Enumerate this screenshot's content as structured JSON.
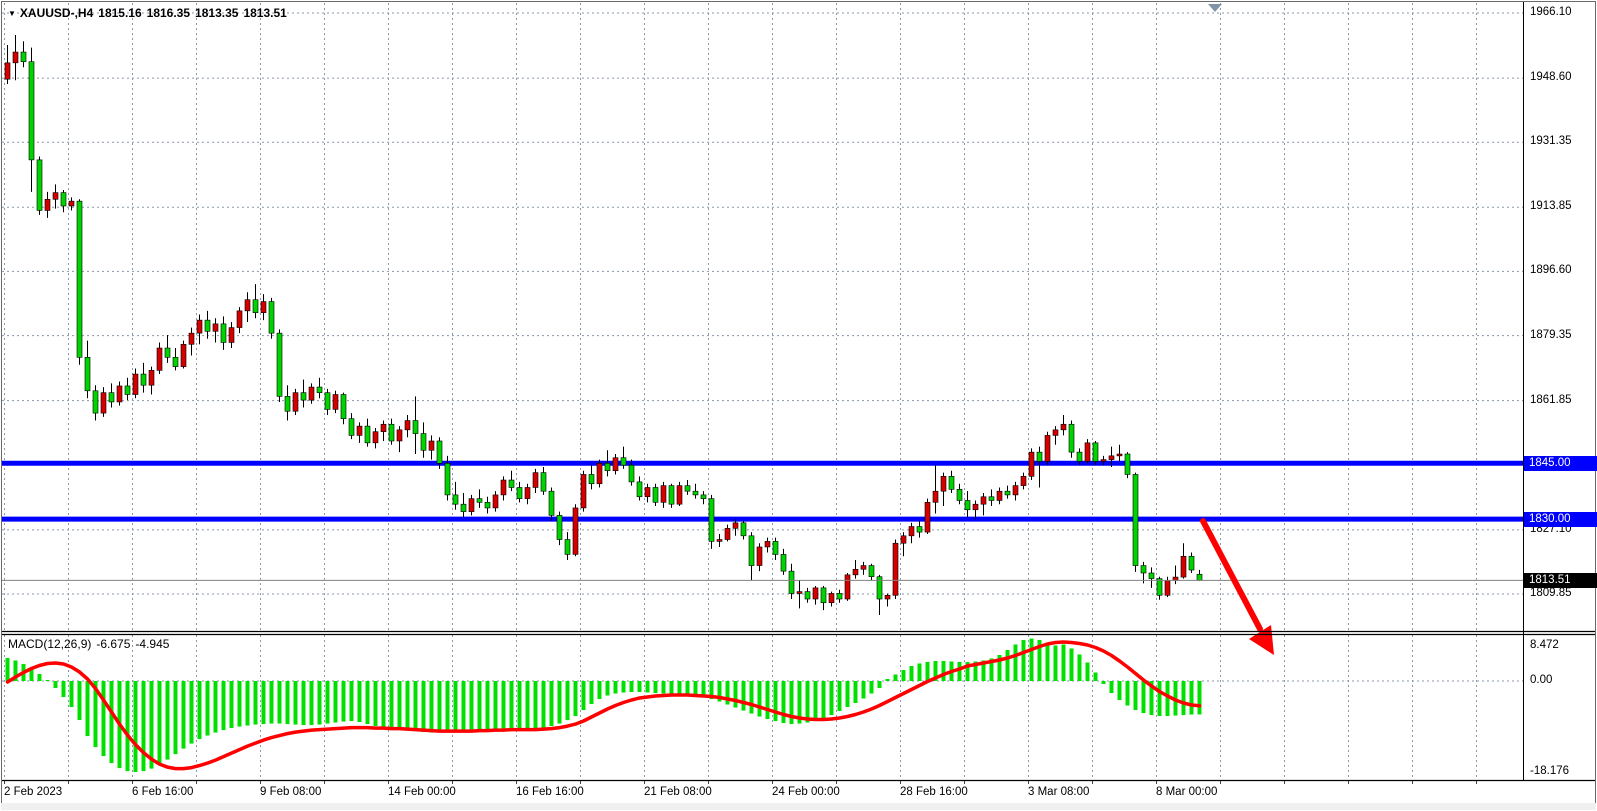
{
  "window": {
    "title": {
      "symbol_period": "XAUUSD-,H4",
      "open": "1815.16",
      "high": "1816.35",
      "low": "1813.35",
      "close": "1813.51"
    }
  },
  "colors": {
    "bull_body": "#d40000",
    "bear_body": "#00d400",
    "wick": "#000000",
    "macd_bar": "#00e000",
    "macd_signal": "#ff0000",
    "hline_blue": "#0000ff",
    "grid": "#8a97a8",
    "current_price_line": "#808080",
    "badge_blue_bg": "#0000ff",
    "badge_black_bg": "#000000",
    "arrow": "#ff0000",
    "shift_marker": "#8193a7"
  },
  "chart_data": {
    "type": "candlestick",
    "symbol": "XAUUSD",
    "timeframe": "H4",
    "x_labels": [
      "2 Feb 2023",
      "6 Feb 16:00",
      "9 Feb 08:00",
      "14 Feb 00:00",
      "16 Feb 16:00",
      "21 Feb 08:00",
      "24 Feb 00:00",
      "28 Feb 16:00",
      "3 Mar 08:00",
      "8 Mar 00:00"
    ],
    "candles_per_x_label": 16,
    "price_axis_labels": [
      {
        "label": "1966.10",
        "value": 1966.1
      },
      {
        "label": "1948.60",
        "value": 1948.6
      },
      {
        "label": "1931.35",
        "value": 1931.35
      },
      {
        "label": "1913.85",
        "value": 1913.85
      },
      {
        "label": "1896.60",
        "value": 1896.6
      },
      {
        "label": "1879.35",
        "value": 1879.35
      },
      {
        "label": "1861.85",
        "value": 1861.85
      },
      {
        "label": "1827.10",
        "value": 1827.1
      },
      {
        "label": "1809.85",
        "value": 1809.85
      }
    ],
    "price_axis_range": {
      "top": 1966.1,
      "bottom": 1809.85
    },
    "hlines": [
      {
        "price": 1845.0,
        "label": "1845.00"
      },
      {
        "price": 1830.0,
        "label": "1830.00"
      }
    ],
    "current_price": {
      "value": 1813.51,
      "label": "1813.51"
    },
    "annotations": {
      "red_down_arrow": {
        "from_price": 1830.0,
        "near_x_label": "8 Mar 00:00",
        "direction": "down-right"
      }
    },
    "candles": [
      [
        1948.3,
        1957.5,
        1947.0,
        1952.7
      ],
      [
        1952.7,
        1960.2,
        1948.0,
        1955.6
      ],
      [
        1955.6,
        1958.5,
        1951.5,
        1953.0
      ],
      [
        1953.0,
        1956.8,
        1918.0,
        1926.6
      ],
      [
        1926.6,
        1927.5,
        1911.8,
        1913.0
      ],
      [
        1913.0,
        1918.0,
        1911.0,
        1916.0
      ],
      [
        1916.0,
        1920.0,
        1913.5,
        1917.8
      ],
      [
        1917.8,
        1918.5,
        1912.5,
        1914.2
      ],
      [
        1914.2,
        1916.5,
        1913.0,
        1915.5
      ],
      [
        1915.5,
        1916.0,
        1871.5,
        1873.5
      ],
      [
        1873.5,
        1878.0,
        1862.5,
        1864.5
      ],
      [
        1864.5,
        1866.0,
        1856.5,
        1858.5
      ],
      [
        1858.5,
        1865.5,
        1857.5,
        1864.0
      ],
      [
        1864.0,
        1866.5,
        1860.0,
        1861.5
      ],
      [
        1861.5,
        1867.0,
        1860.5,
        1865.8
      ],
      [
        1865.8,
        1868.0,
        1862.0,
        1863.5
      ],
      [
        1863.5,
        1870.5,
        1862.5,
        1869.0
      ],
      [
        1869.0,
        1872.0,
        1864.0,
        1866.0
      ],
      [
        1866.0,
        1871.0,
        1863.5,
        1870.0
      ],
      [
        1870.0,
        1877.5,
        1869.0,
        1876.0
      ],
      [
        1876.0,
        1879.5,
        1872.0,
        1873.5
      ],
      [
        1873.5,
        1876.0,
        1870.0,
        1871.0
      ],
      [
        1871.0,
        1878.0,
        1870.5,
        1877.0
      ],
      [
        1877.0,
        1881.5,
        1874.0,
        1880.0
      ],
      [
        1880.0,
        1885.0,
        1877.0,
        1883.5
      ],
      [
        1883.5,
        1886.0,
        1878.5,
        1880.5
      ],
      [
        1880.5,
        1884.0,
        1877.5,
        1882.5
      ],
      [
        1882.5,
        1884.5,
        1875.5,
        1877.5
      ],
      [
        1877.5,
        1883.0,
        1876.0,
        1881.5
      ],
      [
        1881.5,
        1887.0,
        1880.0,
        1886.0
      ],
      [
        1886.0,
        1891.0,
        1883.0,
        1889.0
      ],
      [
        1889.0,
        1893.2,
        1884.0,
        1885.5
      ],
      [
        1885.5,
        1890.5,
        1883.5,
        1888.5
      ],
      [
        1888.5,
        1889.5,
        1878.5,
        1880.0
      ],
      [
        1880.0,
        1881.0,
        1861.5,
        1863.0
      ],
      [
        1863.0,
        1866.0,
        1856.5,
        1859.0
      ],
      [
        1859.0,
        1865.0,
        1858.0,
        1864.0
      ],
      [
        1864.0,
        1867.5,
        1860.0,
        1862.0
      ],
      [
        1862.0,
        1866.5,
        1861.0,
        1865.5
      ],
      [
        1865.5,
        1868.0,
        1862.5,
        1864.0
      ],
      [
        1864.0,
        1865.0,
        1858.0,
        1859.5
      ],
      [
        1859.5,
        1864.5,
        1858.5,
        1863.5
      ],
      [
        1863.5,
        1864.0,
        1855.5,
        1857.0
      ],
      [
        1857.0,
        1858.5,
        1851.5,
        1852.5
      ],
      [
        1852.5,
        1856.0,
        1850.5,
        1855.0
      ],
      [
        1855.0,
        1857.0,
        1849.5,
        1850.5
      ],
      [
        1850.5,
        1854.5,
        1849.0,
        1853.5
      ],
      [
        1853.5,
        1856.5,
        1851.0,
        1855.5
      ],
      [
        1855.5,
        1857.0,
        1850.0,
        1851.0
      ],
      [
        1851.0,
        1855.0,
        1848.0,
        1854.0
      ],
      [
        1854.0,
        1858.0,
        1852.0,
        1856.5
      ],
      [
        1856.5,
        1863.0,
        1847.5,
        1853.0
      ],
      [
        1853.0,
        1856.0,
        1846.5,
        1848.5
      ],
      [
        1848.5,
        1852.5,
        1846.0,
        1851.0
      ],
      [
        1851.0,
        1852.0,
        1843.5,
        1845.0
      ],
      [
        1845.0,
        1847.0,
        1835.0,
        1836.5
      ],
      [
        1836.5,
        1840.0,
        1832.5,
        1834.0
      ],
      [
        1834.0,
        1837.0,
        1830.4,
        1832.0
      ],
      [
        1832.0,
        1836.5,
        1831.0,
        1835.5
      ],
      [
        1835.5,
        1838.0,
        1833.0,
        1834.5
      ],
      [
        1834.5,
        1836.0,
        1831.5,
        1833.0
      ],
      [
        1833.0,
        1837.5,
        1832.0,
        1836.5
      ],
      [
        1836.5,
        1841.5,
        1835.0,
        1840.5
      ],
      [
        1840.5,
        1843.0,
        1837.5,
        1838.5
      ],
      [
        1838.5,
        1840.0,
        1834.5,
        1835.5
      ],
      [
        1835.5,
        1839.5,
        1834.0,
        1838.5
      ],
      [
        1838.5,
        1843.5,
        1837.0,
        1842.5
      ],
      [
        1842.5,
        1844.0,
        1836.5,
        1837.5
      ],
      [
        1837.5,
        1838.5,
        1829.5,
        1831.0
      ],
      [
        1831.0,
        1832.0,
        1823.0,
        1824.5
      ],
      [
        1824.5,
        1826.5,
        1819.0,
        1820.5
      ],
      [
        1820.5,
        1834.0,
        1820.0,
        1833.0
      ],
      [
        1833.0,
        1843.0,
        1832.0,
        1842.0
      ],
      [
        1842.0,
        1844.5,
        1838.0,
        1839.5
      ],
      [
        1839.5,
        1846.0,
        1838.5,
        1845.0
      ],
      [
        1845.0,
        1848.5,
        1841.5,
        1843.0
      ],
      [
        1843.0,
        1847.5,
        1842.0,
        1846.5
      ],
      [
        1846.5,
        1849.5,
        1843.5,
        1844.5
      ],
      [
        1844.5,
        1846.0,
        1839.0,
        1840.0
      ],
      [
        1840.0,
        1841.5,
        1835.0,
        1836.0
      ],
      [
        1836.0,
        1839.5,
        1834.5,
        1838.5
      ],
      [
        1838.5,
        1839.5,
        1833.5,
        1834.5
      ],
      [
        1834.5,
        1840.0,
        1833.0,
        1839.0
      ],
      [
        1839.0,
        1839.5,
        1833.0,
        1834.0
      ],
      [
        1834.0,
        1840.0,
        1833.5,
        1839.0
      ],
      [
        1839.0,
        1840.5,
        1836.5,
        1837.5
      ],
      [
        1837.5,
        1839.5,
        1835.5,
        1836.5
      ],
      [
        1836.5,
        1837.5,
        1834.0,
        1835.5
      ],
      [
        1835.5,
        1836.5,
        1822.0,
        1824.0
      ],
      [
        1824.0,
        1826.0,
        1822.5,
        1824.5
      ],
      [
        1824.5,
        1828.5,
        1824.0,
        1827.5
      ],
      [
        1827.5,
        1830.0,
        1825.5,
        1829.0
      ],
      [
        1829.0,
        1829.5,
        1824.5,
        1825.5
      ],
      [
        1825.5,
        1826.5,
        1813.5,
        1817.5
      ],
      [
        1817.5,
        1823.5,
        1816.0,
        1822.5
      ],
      [
        1822.5,
        1825.0,
        1821.0,
        1824.0
      ],
      [
        1824.0,
        1825.0,
        1819.0,
        1820.5
      ],
      [
        1820.5,
        1822.0,
        1815.0,
        1816.0
      ],
      [
        1816.0,
        1818.0,
        1808.5,
        1810.0
      ],
      [
        1810.0,
        1813.5,
        1806.0,
        1810.5
      ],
      [
        1810.5,
        1811.5,
        1807.5,
        1808.5
      ],
      [
        1808.5,
        1812.0,
        1807.0,
        1811.5
      ],
      [
        1811.5,
        1812.0,
        1805.5,
        1807.5
      ],
      [
        1807.5,
        1810.5,
        1806.5,
        1810.0
      ],
      [
        1810.0,
        1811.0,
        1807.5,
        1808.5
      ],
      [
        1808.5,
        1815.5,
        1808.0,
        1815.0
      ],
      [
        1815.0,
        1819.0,
        1814.0,
        1816.5
      ],
      [
        1816.5,
        1818.5,
        1815.0,
        1817.5
      ],
      [
        1817.5,
        1818.0,
        1813.5,
        1814.5
      ],
      [
        1814.5,
        1815.0,
        1804.2,
        1808.5
      ],
      [
        1808.5,
        1810.0,
        1806.5,
        1809.5
      ],
      [
        1809.5,
        1824.5,
        1808.5,
        1823.5
      ],
      [
        1823.5,
        1826.5,
        1820.0,
        1825.5
      ],
      [
        1825.5,
        1829.0,
        1823.5,
        1828.0
      ],
      [
        1828.0,
        1829.5,
        1825.0,
        1826.5
      ],
      [
        1826.5,
        1835.5,
        1826.0,
        1834.5
      ],
      [
        1834.5,
        1844.5,
        1831.5,
        1837.5
      ],
      [
        1837.5,
        1842.5,
        1833.5,
        1841.5
      ],
      [
        1841.5,
        1843.0,
        1837.0,
        1838.0
      ],
      [
        1838.0,
        1839.5,
        1834.0,
        1835.0
      ],
      [
        1835.0,
        1837.5,
        1830.5,
        1832.5
      ],
      [
        1832.5,
        1835.0,
        1830.0,
        1834.0
      ],
      [
        1834.0,
        1837.0,
        1831.0,
        1836.0
      ],
      [
        1836.0,
        1838.0,
        1833.5,
        1835.0
      ],
      [
        1835.0,
        1838.5,
        1834.0,
        1837.5
      ],
      [
        1837.5,
        1839.0,
        1835.5,
        1836.5
      ],
      [
        1836.5,
        1840.0,
        1835.0,
        1839.0
      ],
      [
        1839.0,
        1842.5,
        1838.0,
        1841.5
      ],
      [
        1841.5,
        1849.0,
        1840.5,
        1848.0
      ],
      [
        1848.0,
        1849.5,
        1838.5,
        1845.5
      ],
      [
        1845.5,
        1853.5,
        1844.5,
        1852.5
      ],
      [
        1852.5,
        1855.0,
        1850.0,
        1854.0
      ],
      [
        1854.0,
        1858.0,
        1852.5,
        1855.5
      ],
      [
        1855.5,
        1856.5,
        1846.5,
        1848.0
      ],
      [
        1848.0,
        1849.0,
        1844.5,
        1845.5
      ],
      [
        1845.5,
        1851.5,
        1845.0,
        1850.5
      ],
      [
        1850.5,
        1851.0,
        1844.5,
        1845.5
      ],
      [
        1845.5,
        1847.0,
        1844.5,
        1846.0
      ],
      [
        1846.0,
        1849.5,
        1844.0,
        1847.0
      ],
      [
        1847.0,
        1850.0,
        1845.5,
        1847.5
      ],
      [
        1847.5,
        1848.0,
        1841.0,
        1842.0
      ],
      [
        1842.0,
        1842.5,
        1815.8,
        1817.5
      ],
      [
        1817.5,
        1818.5,
        1812.7,
        1815.5
      ],
      [
        1815.5,
        1817.0,
        1811.5,
        1814.0
      ],
      [
        1814.0,
        1814.5,
        1808.3,
        1809.5
      ],
      [
        1809.5,
        1814.5,
        1809.0,
        1813.5
      ],
      [
        1813.5,
        1817.5,
        1812.5,
        1814.4
      ],
      [
        1814.4,
        1823.5,
        1814.0,
        1820.0
      ],
      [
        1820.0,
        1821.0,
        1815.5,
        1816.3
      ],
      [
        1815.16,
        1816.35,
        1813.35,
        1813.51
      ]
    ],
    "macd": {
      "label": "MACD(12,26,9)",
      "macd_value": "-6.675",
      "signal_value": "-4.945",
      "axis_max_label": "8.472",
      "axis_zero_label": "0.00",
      "axis_min_label": "-18.176",
      "axis_max": 8.472,
      "axis_min": -18.176,
      "histogram": [
        4.6,
        4.1,
        3.4,
        2.6,
        1.4,
        0.2,
        -1.4,
        -3.2,
        -5.2,
        -7.8,
        -11.0,
        -13.2,
        -15.0,
        -16.4,
        -17.4,
        -18.0,
        -18.18,
        -18.0,
        -17.5,
        -16.7,
        -15.7,
        -14.6,
        -13.5,
        -12.5,
        -11.6,
        -10.9,
        -10.3,
        -9.8,
        -9.4,
        -9.1,
        -8.9,
        -8.7,
        -8.6,
        -8.5,
        -8.5,
        -8.6,
        -8.7,
        -8.8,
        -8.8,
        -8.7,
        -8.5,
        -8.3,
        -8.1,
        -8.0,
        -8.2,
        -8.6,
        -9.0,
        -9.3,
        -9.5,
        -9.7,
        -9.8,
        -10.0,
        -10.2,
        -10.3,
        -10.2,
        -10.1,
        -10.0,
        -9.9,
        -9.8,
        -9.7,
        -9.6,
        -9.5,
        -9.5,
        -9.6,
        -9.7,
        -9.7,
        -9.6,
        -9.4,
        -9.0,
        -8.5,
        -7.8,
        -7.0,
        -5.8,
        -4.6,
        -3.6,
        -2.9,
        -2.5,
        -2.3,
        -2.2,
        -2.2,
        -2.3,
        -2.4,
        -2.5,
        -2.5,
        -2.6,
        -2.7,
        -2.9,
        -3.2,
        -3.6,
        -4.1,
        -4.7,
        -5.3,
        -5.9,
        -6.5,
        -7.1,
        -7.6,
        -8.0,
        -8.4,
        -8.6,
        -8.5,
        -8.3,
        -7.9,
        -7.4,
        -6.8,
        -6.0,
        -5.2,
        -4.4,
        -3.5,
        -2.5,
        -1.4,
        0.4,
        1.3,
        2.2,
        3.0,
        3.5,
        3.8,
        4.0,
        4.0,
        3.9,
        3.8,
        3.8,
        3.9,
        4.1,
        4.5,
        5.2,
        6.2,
        7.3,
        8.2,
        8.472,
        8.2,
        7.7,
        7.1,
        7.3,
        6.5,
        5.3,
        3.7,
        1.7,
        -0.6,
        -2.4,
        -3.8,
        -4.9,
        -5.8,
        -6.4,
        -6.8,
        -7.0,
        -7.0,
        -6.9,
        -6.8,
        -6.7,
        -6.675
      ],
      "signal": [
        -0.2,
        0.8,
        1.7,
        2.5,
        3.1,
        3.5,
        3.6,
        3.4,
        2.8,
        1.8,
        0.4,
        -1.5,
        -3.8,
        -6.2,
        -8.6,
        -10.8,
        -12.7,
        -14.3,
        -15.6,
        -16.6,
        -17.2,
        -17.5,
        -17.5,
        -17.3,
        -16.9,
        -16.4,
        -15.8,
        -15.1,
        -14.4,
        -13.7,
        -13.0,
        -12.4,
        -11.8,
        -11.3,
        -10.9,
        -10.5,
        -10.2,
        -10.0,
        -9.8,
        -9.7,
        -9.6,
        -9.5,
        -9.4,
        -9.3,
        -9.3,
        -9.3,
        -9.4,
        -9.4,
        -9.5,
        -9.5,
        -9.6,
        -9.7,
        -9.8,
        -9.9,
        -10.0,
        -10.0,
        -10.0,
        -10.0,
        -10.0,
        -9.9,
        -9.9,
        -9.8,
        -9.8,
        -9.7,
        -9.7,
        -9.7,
        -9.7,
        -9.6,
        -9.5,
        -9.3,
        -9.0,
        -8.6,
        -8.0,
        -7.2,
        -6.4,
        -5.6,
        -4.9,
        -4.3,
        -3.8,
        -3.4,
        -3.2,
        -3.0,
        -2.9,
        -2.8,
        -2.8,
        -2.8,
        -2.9,
        -3.0,
        -3.1,
        -3.3,
        -3.6,
        -3.9,
        -4.3,
        -4.7,
        -5.2,
        -5.7,
        -6.2,
        -6.7,
        -7.1,
        -7.4,
        -7.6,
        -7.7,
        -7.7,
        -7.6,
        -7.4,
        -7.1,
        -6.7,
        -6.2,
        -5.6,
        -4.9,
        -4.1,
        -3.3,
        -2.5,
        -1.7,
        -0.9,
        -0.1,
        0.6,
        1.3,
        1.9,
        2.4,
        3.0,
        3.3,
        3.6,
        3.9,
        4.2,
        4.6,
        5.1,
        5.7,
        6.3,
        6.9,
        7.4,
        7.7,
        7.8,
        7.7,
        7.5,
        7.2,
        6.7,
        6.0,
        5.1,
        4.0,
        2.8,
        1.5,
        0.2,
        -1.0,
        -2.1,
        -3.0,
        -3.8,
        -4.4,
        -4.8,
        -4.945
      ]
    }
  }
}
